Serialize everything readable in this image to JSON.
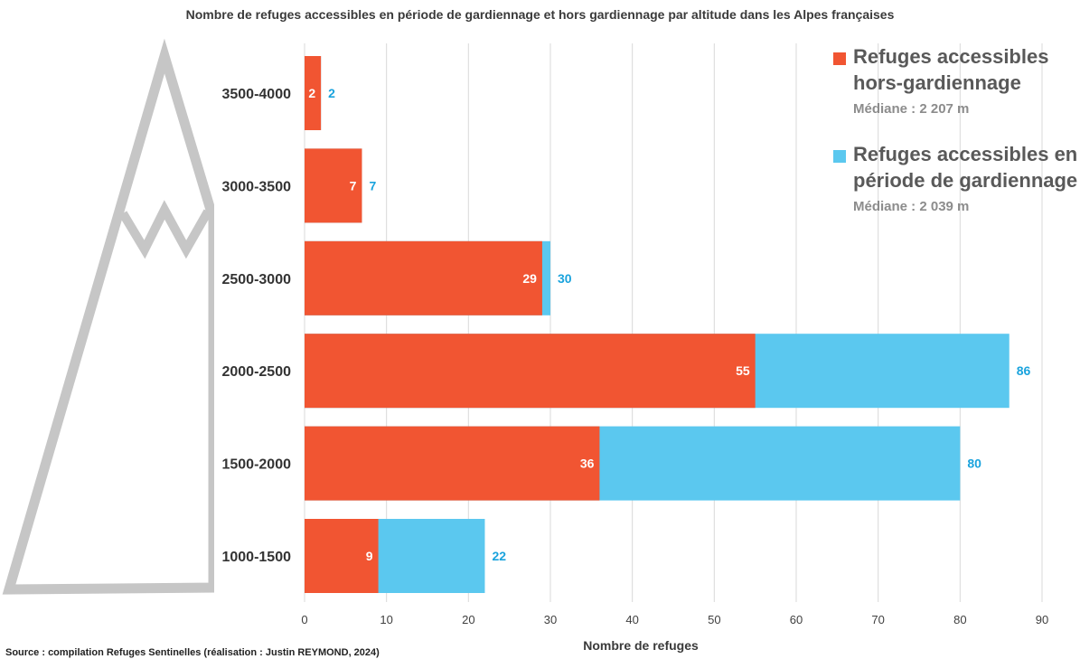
{
  "title": "Nombre de refuges accessibles en période de gardiennage et hors gardiennage par altitude dans les Alpes françaises",
  "source": "Source : compilation Refuges Sentinelles (réalisation : Justin REYMOND, 2024)",
  "colors": {
    "hors": "#F15532",
    "gard": "#5BC8EF",
    "grid": "#d9d9d9",
    "mountain": "#c6c6c6"
  },
  "legend": [
    {
      "line1": "Refuges accessibles",
      "line2": "hors-gardiennage",
      "median": "Médiane : 2 207 m"
    },
    {
      "line1": "Refuges accessibles en",
      "line2": "période de gardiennage",
      "median": "Médiane : 2 039 m"
    }
  ],
  "chart_data": {
    "type": "bar",
    "orientation": "horizontal",
    "categories": [
      "3500-4000",
      "3000-3500",
      "2500-3000",
      "2000-2500",
      "1500-2000",
      "1000-1500"
    ],
    "series": [
      {
        "name": "Refuges accessibles hors-gardiennage",
        "values": [
          2,
          7,
          29,
          55,
          36,
          9
        ]
      },
      {
        "name": "Refuges accessibles en période de gardiennage",
        "values": [
          2,
          7,
          30,
          86,
          80,
          22
        ]
      }
    ],
    "xlabel": "Nombre de refuges",
    "ylabel": "",
    "xlim": [
      0,
      90
    ],
    "xticks": [
      0,
      10,
      20,
      30,
      40,
      50,
      60,
      70,
      80,
      90
    ],
    "grid": true,
    "legend_position": "top-right"
  }
}
